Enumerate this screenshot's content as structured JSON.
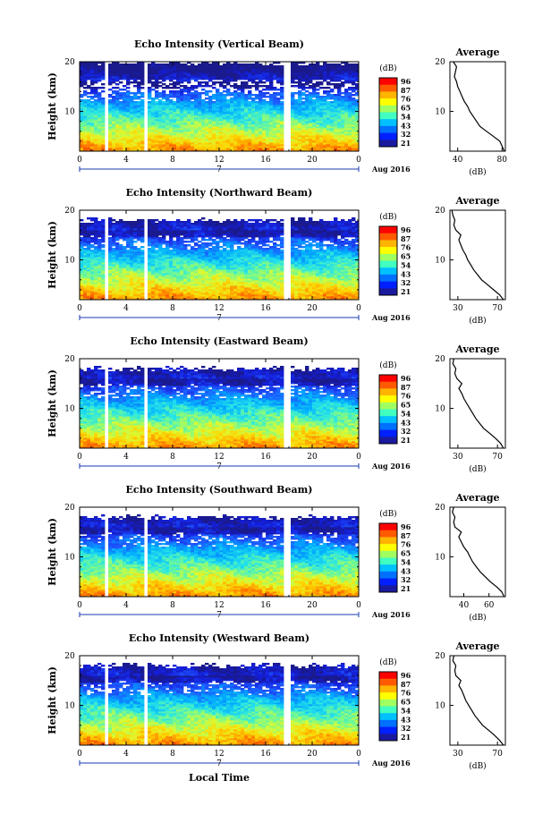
{
  "xlabel": "Local Time",
  "date_label": "Aug 2016",
  "day_tick": "7",
  "colorbar": {
    "unit": "(dB)",
    "ticks": [
      "96",
      "87",
      "76",
      "65",
      "54",
      "43",
      "32",
      "21"
    ],
    "colors": [
      "#ff0000",
      "#ff5a00",
      "#ffb400",
      "#ffff00",
      "#a0ff60",
      "#40ffc0",
      "#00c0ff",
      "#0070ff",
      "#0020ff",
      "#1a1aa0"
    ]
  },
  "chart_data": [
    {
      "type": "heatmap",
      "title": "Echo Intensity (Vertical Beam)",
      "ylabel": "Height (km)",
      "xticks": [
        "0",
        "4",
        "8",
        "12",
        "16",
        "20",
        "0"
      ],
      "yticks": [
        "20",
        "10"
      ],
      "xlim": [
        0,
        24
      ],
      "ylim": [
        2,
        20
      ],
      "gaps_hours": [
        2.2,
        5.8,
        17.6,
        18.1
      ],
      "average": {
        "title": "Average",
        "xlabel": "(dB)",
        "xticks": [
          "40",
          "80"
        ],
        "xlim": [
          33,
          83
        ],
        "yticks": [
          "20",
          "10"
        ],
        "height_km": [
          2,
          3,
          4,
          5,
          6,
          7,
          8,
          9,
          10,
          11,
          12,
          13,
          14,
          15,
          16,
          17,
          18,
          19,
          20
        ],
        "db": [
          82,
          80,
          78,
          72,
          66,
          60,
          57,
          54,
          51,
          49,
          46,
          44,
          42,
          40,
          39,
          37,
          38,
          39,
          36
        ]
      }
    },
    {
      "type": "heatmap",
      "title": "Echo Intensity (Northward Beam)",
      "ylabel": "Height (km)",
      "xticks": [
        "0",
        "4",
        "8",
        "12",
        "16",
        "20",
        "0"
      ],
      "yticks": [
        "20",
        "10"
      ],
      "xlim": [
        0,
        24
      ],
      "ylim": [
        2,
        20
      ],
      "gaps_hours": [
        2.2,
        5.8,
        17.6,
        18.1
      ],
      "average": {
        "title": "Average",
        "xlabel": "(dB)",
        "xticks": [
          "30",
          "70"
        ],
        "xlim": [
          22,
          78
        ],
        "yticks": [
          "20",
          "10"
        ],
        "height_km": [
          2,
          3,
          4,
          5,
          6,
          7,
          8,
          9,
          10,
          11,
          12,
          13,
          14,
          15,
          16,
          17,
          18,
          19,
          20
        ],
        "db": [
          76,
          72,
          66,
          60,
          54,
          50,
          46,
          43,
          40,
          38,
          35,
          33,
          31,
          33,
          28,
          26,
          27,
          25,
          24
        ]
      }
    },
    {
      "type": "heatmap",
      "title": "Echo Intensity (Eastward Beam)",
      "ylabel": "Height (km)",
      "xticks": [
        "0",
        "4",
        "8",
        "12",
        "16",
        "20",
        "0"
      ],
      "yticks": [
        "20",
        "10"
      ],
      "xlim": [
        0,
        24
      ],
      "ylim": [
        2,
        20
      ],
      "gaps_hours": [
        2.2,
        5.8,
        17.6,
        18.1
      ],
      "average": {
        "title": "Average",
        "xlabel": "(dB)",
        "xticks": [
          "30",
          "70"
        ],
        "xlim": [
          22,
          78
        ],
        "yticks": [
          "20",
          "10"
        ],
        "height_km": [
          2,
          3,
          4,
          5,
          6,
          7,
          8,
          9,
          10,
          11,
          12,
          13,
          14,
          15,
          16,
          17,
          18,
          19,
          20
        ],
        "db": [
          76,
          73,
          68,
          62,
          56,
          52,
          48,
          45,
          42,
          39,
          36,
          34,
          31,
          34,
          29,
          27,
          28,
          25,
          26
        ]
      }
    },
    {
      "type": "heatmap",
      "title": "Echo Intensity (Southward Beam)",
      "ylabel": "Height (km)",
      "xticks": [
        "0",
        "4",
        "8",
        "12",
        "16",
        "20",
        "0"
      ],
      "yticks": [
        "20",
        "10"
      ],
      "xlim": [
        0,
        24
      ],
      "ylim": [
        2,
        20
      ],
      "gaps_hours": [
        2.2,
        5.8,
        17.6,
        18.1
      ],
      "average": {
        "title": "Average",
        "xlabel": "(dB)",
        "xticks": [
          "40",
          "60"
        ],
        "xlim": [
          29,
          73
        ],
        "yticks": [
          "20",
          "10"
        ],
        "height_km": [
          2,
          3,
          4,
          5,
          6,
          7,
          8,
          9,
          10,
          11,
          12,
          13,
          14,
          15,
          16,
          17,
          18,
          19,
          20
        ],
        "db": [
          72,
          70,
          66,
          61,
          57,
          53,
          50,
          47,
          45,
          43,
          40,
          38,
          36,
          38,
          33,
          32,
          33,
          31,
          32
        ]
      }
    },
    {
      "type": "heatmap",
      "title": "Echo Intensity (Westward Beam)",
      "ylabel": "Height (km)",
      "xticks": [
        "0",
        "4",
        "8",
        "12",
        "16",
        "20",
        "0"
      ],
      "yticks": [
        "20",
        "10"
      ],
      "xlim": [
        0,
        24
      ],
      "ylim": [
        2,
        20
      ],
      "gaps_hours": [
        2.2,
        5.8,
        17.6,
        18.1
      ],
      "average": {
        "title": "Average",
        "xlabel": "(dB)",
        "xticks": [
          "30",
          "70"
        ],
        "xlim": [
          22,
          78
        ],
        "yticks": [
          "20",
          "10"
        ],
        "height_km": [
          2,
          3,
          4,
          5,
          6,
          7,
          8,
          9,
          10,
          11,
          12,
          13,
          14,
          15,
          16,
          17,
          18,
          19,
          20
        ],
        "db": [
          76,
          72,
          67,
          61,
          55,
          51,
          47,
          44,
          41,
          38,
          36,
          34,
          31,
          33,
          28,
          27,
          28,
          25,
          26
        ]
      }
    }
  ]
}
